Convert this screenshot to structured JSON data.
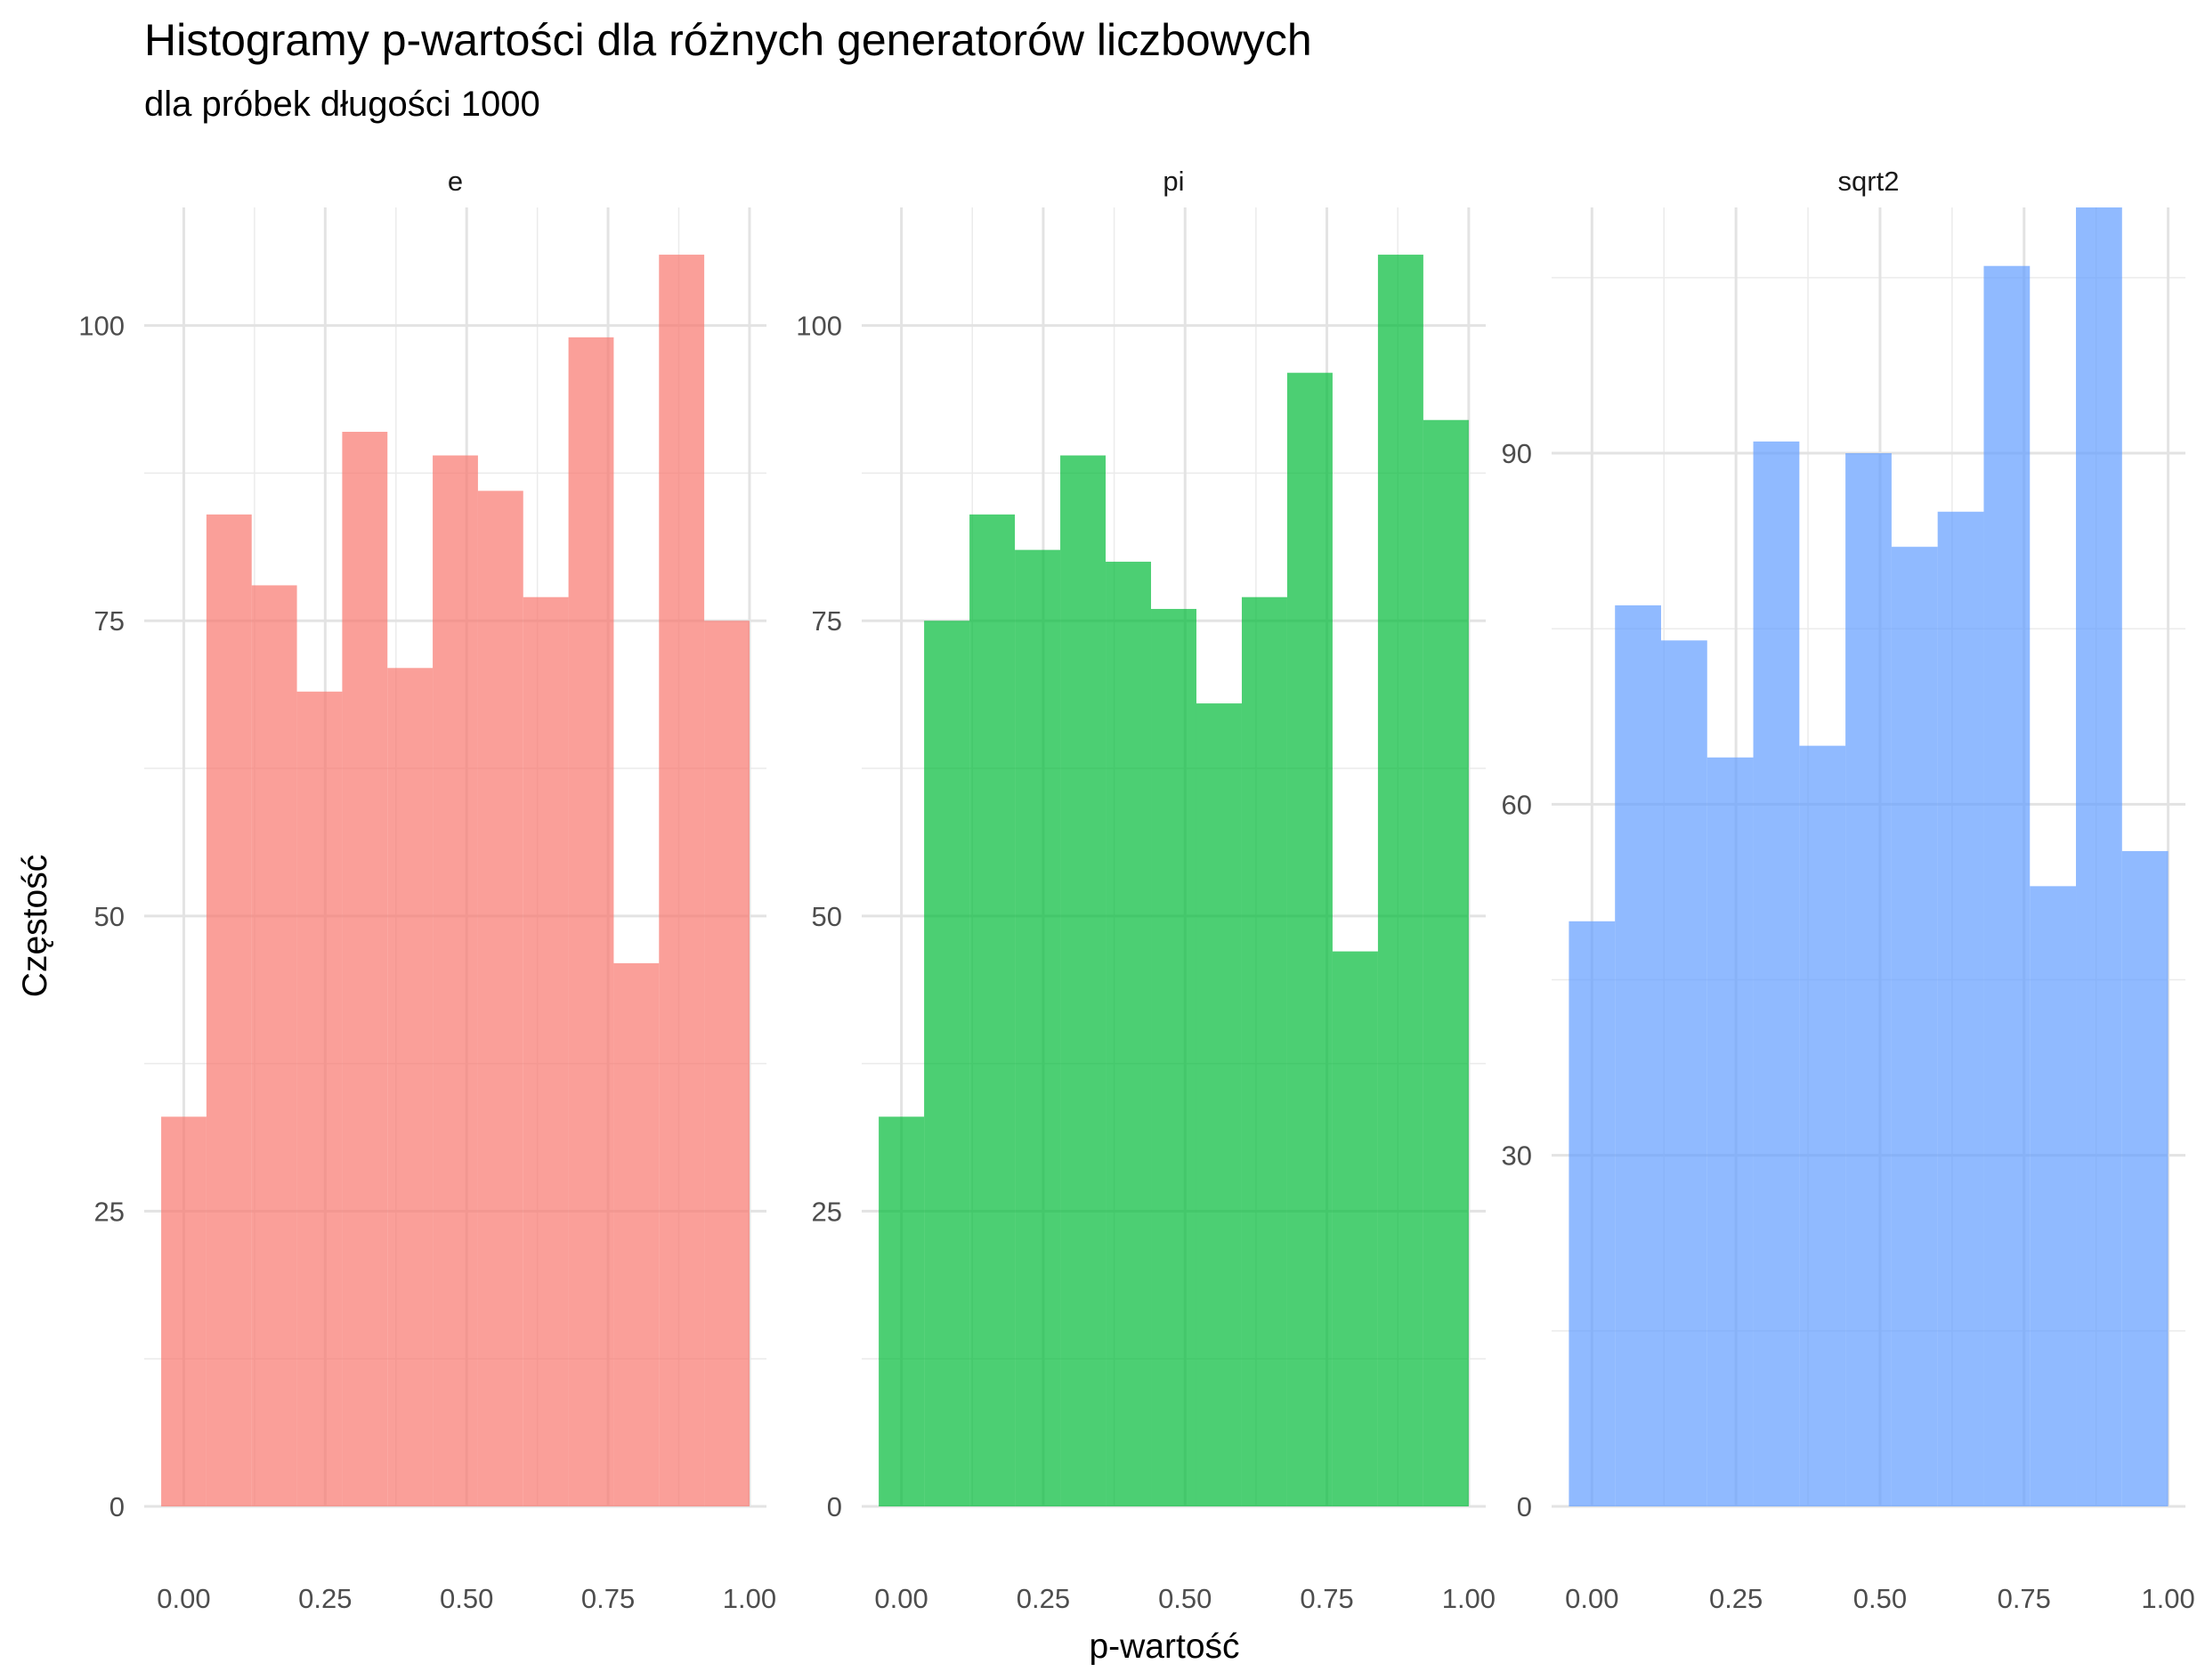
{
  "chart_data": {
    "type": "bar",
    "title": "Histogramy p-wartości dla różnych generatorów liczbowych",
    "subtitle": "dla próbek długości 1000",
    "xlabel": "p-wartość",
    "ylabel": "Częstość",
    "grid": true,
    "legend": "none",
    "bin_width": 0.08,
    "bin_centers": [
      0.0,
      0.08,
      0.16,
      0.24,
      0.32,
      0.4,
      0.48,
      0.56,
      0.64,
      0.72,
      0.8,
      0.88,
      0.96
    ],
    "x_ticks": [
      0.0,
      0.25,
      0.5,
      0.75,
      1.0
    ],
    "x_tick_labels": [
      "0.00",
      "0.25",
      "0.50",
      "0.75",
      "1.00"
    ],
    "xlim": [
      -0.07,
      1.03
    ],
    "panels": [
      {
        "name": "e",
        "color": "#F8766D",
        "values": [
          33,
          84,
          78,
          69,
          91,
          71,
          89,
          86,
          77,
          99,
          46,
          106,
          75
        ],
        "ylim": [
          0,
          110
        ],
        "y_ticks": [
          0,
          25,
          50,
          75,
          100
        ],
        "y_tick_labels": [
          "0",
          "25",
          "50",
          "75",
          "100"
        ]
      },
      {
        "name": "pi",
        "color": "#00BA38",
        "values": [
          33,
          75,
          84,
          81,
          89,
          80,
          76,
          68,
          77,
          96,
          47,
          106,
          92
        ],
        "ylim": [
          0,
          110
        ],
        "y_ticks": [
          0,
          25,
          50,
          75,
          100
        ],
        "y_tick_labels": [
          "0",
          "25",
          "50",
          "75",
          "100"
        ]
      },
      {
        "name": "sqrt2",
        "color": "#619CFF",
        "values": [
          50,
          77,
          74,
          64,
          91,
          65,
          90,
          82,
          85,
          106,
          53,
          111,
          56
        ],
        "ylim": [
          0,
          111
        ],
        "y_ticks": [
          0,
          30,
          60,
          90
        ],
        "y_tick_labels": [
          "0",
          "30",
          "60",
          "90"
        ]
      }
    ]
  }
}
